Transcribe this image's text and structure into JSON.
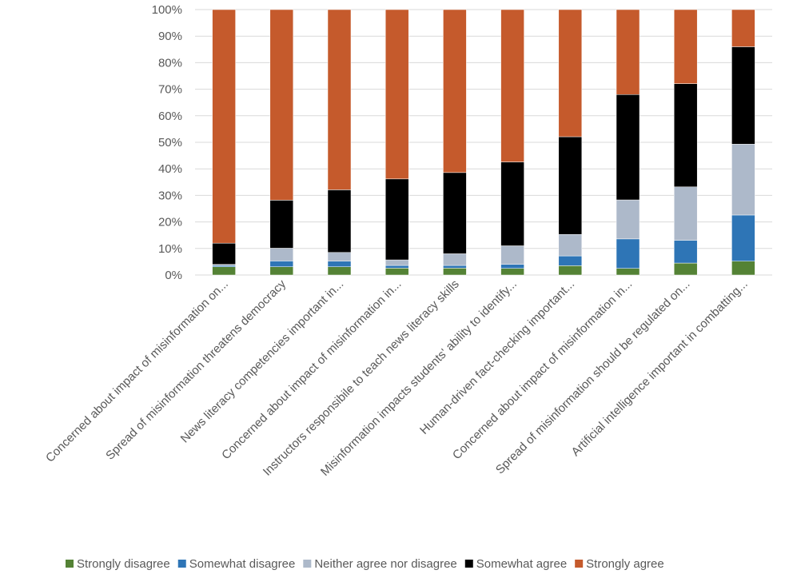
{
  "chart_data": {
    "type": "bar",
    "stacked": true,
    "percent_stacked": true,
    "title": "",
    "xlabel": "",
    "ylabel": "",
    "ylim": [
      0,
      100
    ],
    "y_ticks": [
      "0%",
      "10%",
      "20%",
      "30%",
      "40%",
      "50%",
      "60%",
      "70%",
      "80%",
      "90%",
      "100%"
    ],
    "grid": true,
    "legend_position": "bottom",
    "categories": [
      "Concerned about impact of misinformation on...",
      "Spread of misinformation threatens democracy",
      "News literacy competencies important in...",
      "Concerned about impact of misinformation in...",
      "Instructors responsibile to teach news literacy skills",
      "Misinformation impacts students' ability to identify...",
      "Human-driven fact-checking important...",
      "Concerned about impact of misinformation in...",
      "Spread of misinformation should be regulated on...",
      "Artificial intelligence important in combatting..."
    ],
    "series": [
      {
        "name": "Strongly disagree",
        "color": "#548235",
        "values": [
          3.1,
          3.1,
          3.1,
          2.6,
          2.6,
          2.5,
          3.5,
          2.5,
          4.5,
          5.2
        ]
      },
      {
        "name": "Somewhat disagree",
        "color": "#2E75B6",
        "values": [
          0.5,
          2.2,
          2.1,
          1.0,
          1.0,
          1.5,
          3.7,
          11.1,
          8.6,
          17.4
        ]
      },
      {
        "name": "Neither agree nor disagree",
        "color": "#ADB9CA",
        "values": [
          0.4,
          4.8,
          3.3,
          2.1,
          4.4,
          7.0,
          8.1,
          14.7,
          20.1,
          26.7
        ]
      },
      {
        "name": "Somewhat agree",
        "color": "#000000",
        "values": [
          8.0,
          18.1,
          23.6,
          30.5,
          30.6,
          31.6,
          36.8,
          39.7,
          38.9,
          36.7
        ]
      },
      {
        "name": "Strongly agree",
        "color": "#C55A2C",
        "values": [
          88.0,
          71.8,
          67.9,
          63.8,
          61.4,
          57.4,
          47.9,
          32.0,
          27.9,
          14.0
        ]
      }
    ]
  }
}
